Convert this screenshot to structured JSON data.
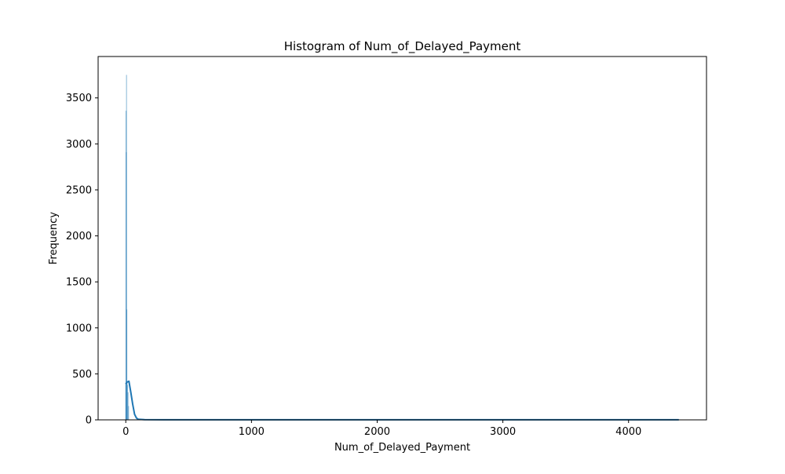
{
  "chart_data": {
    "type": "bar",
    "title": "Histogram of Num_of_Delayed_Payment",
    "xlabel": "Num_of_Delayed_Payment",
    "ylabel": "Frequency",
    "xlim": [
      -220,
      4620
    ],
    "ylim": [
      0,
      3950
    ],
    "xticks": [
      0,
      1000,
      2000,
      3000,
      4000
    ],
    "yticks": [
      0,
      500,
      1000,
      1500,
      2000,
      2500,
      3000,
      3500
    ],
    "bars": [
      {
        "x": 0,
        "value": 400
      },
      {
        "x": 2,
        "value": 3360
      },
      {
        "x": 4,
        "value": 2910
      },
      {
        "x": 6,
        "value": 3750
      },
      {
        "x": 8,
        "value": 1200
      },
      {
        "x": 10,
        "value": 420
      },
      {
        "x": 14,
        "value": 380
      },
      {
        "x": 18,
        "value": 300
      },
      {
        "x": 22,
        "value": 150
      }
    ],
    "kde": {
      "x": [
        0,
        10,
        25,
        40,
        55,
        70,
        85,
        100,
        150,
        300,
        1000,
        2000,
        3000,
        4000,
        4400
      ],
      "y": [
        390,
        410,
        420,
        300,
        170,
        60,
        20,
        6,
        2,
        1,
        1,
        1,
        1,
        1,
        1
      ]
    },
    "colors": {
      "bar": "#1f77b4",
      "kde": "#1f77b4"
    },
    "grid": false,
    "legend": "none"
  }
}
